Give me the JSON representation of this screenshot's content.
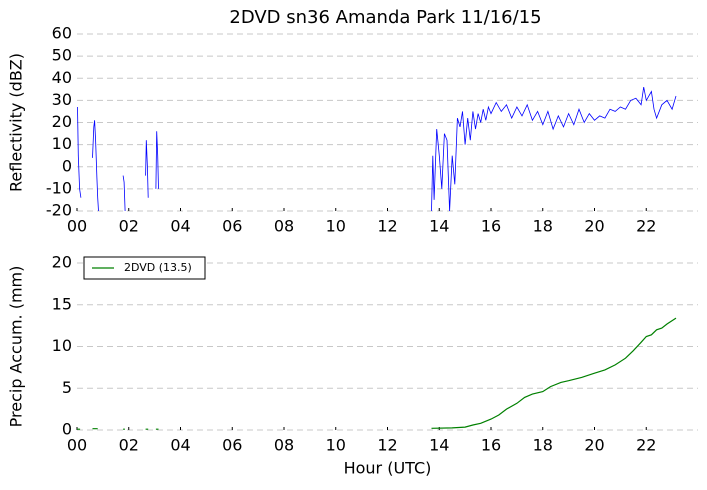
{
  "chart_data": [
    {
      "type": "line",
      "title": "2DVD sn36 Amanda Park 11/16/15",
      "y_label": "Reflectivity (dBZ)",
      "color": "#0000ff",
      "grid": true,
      "xlim": [
        0,
        24
      ],
      "xticks": [
        {
          "value": 0,
          "label": "00"
        },
        {
          "value": 2,
          "label": "02"
        },
        {
          "value": 4,
          "label": "04"
        },
        {
          "value": 6,
          "label": "06"
        },
        {
          "value": 8,
          "label": "08"
        },
        {
          "value": 10,
          "label": "10"
        },
        {
          "value": 12,
          "label": "12"
        },
        {
          "value": 14,
          "label": "14"
        },
        {
          "value": 16,
          "label": "16"
        },
        {
          "value": 18,
          "label": "18"
        },
        {
          "value": 20,
          "label": "20"
        },
        {
          "value": 22,
          "label": "22"
        }
      ],
      "ylim": [
        -20,
        60
      ],
      "yticks": [
        -20,
        -10,
        0,
        10,
        20,
        30,
        40,
        50,
        60
      ],
      "x": [
        0.02,
        0.05,
        0.1,
        0.15,
        0.3,
        0.6,
        0.65,
        0.68,
        0.72,
        0.77,
        0.8,
        0.83,
        1.2,
        1.78,
        1.82,
        1.86,
        2.2,
        2.65,
        2.68,
        2.72,
        2.75,
        2.9,
        3.05,
        3.08,
        3.12,
        3.15,
        8.0,
        13.7,
        13.75,
        13.8,
        13.9,
        14.0,
        14.1,
        14.2,
        14.3,
        14.4,
        14.5,
        14.6,
        14.7,
        14.8,
        14.9,
        15.0,
        15.1,
        15.2,
        15.3,
        15.4,
        15.5,
        15.6,
        15.7,
        15.8,
        15.9,
        16.0,
        16.2,
        16.4,
        16.6,
        16.8,
        17.0,
        17.2,
        17.4,
        17.6,
        17.8,
        18.0,
        18.2,
        18.4,
        18.6,
        18.8,
        19.0,
        19.2,
        19.4,
        19.6,
        19.8,
        20.0,
        20.2,
        20.4,
        20.6,
        20.8,
        21.0,
        21.2,
        21.4,
        21.6,
        21.8,
        21.9,
        22.0,
        22.2,
        22.3,
        22.4,
        22.6,
        22.8,
        23.0,
        23.15
      ],
      "values": [
        27,
        5,
        -10,
        -14,
        null,
        4,
        18,
        21,
        12,
        -5,
        -14,
        -20,
        null,
        -4,
        -7,
        -20,
        null,
        -4,
        12,
        0,
        -14,
        null,
        -10,
        16,
        5,
        -10,
        null,
        -20,
        5,
        -15,
        17,
        5,
        -10,
        15,
        12,
        -20,
        5,
        -8,
        22,
        18,
        25,
        10,
        22,
        12,
        25,
        17,
        24,
        20,
        26,
        21,
        27,
        24,
        29,
        25,
        28,
        22,
        27,
        23,
        28,
        21,
        25,
        19,
        25,
        17,
        23,
        18,
        24,
        19,
        26,
        20,
        24,
        21,
        23,
        22,
        26,
        25,
        27,
        26,
        30,
        31,
        28,
        36,
        30,
        34,
        26,
        22,
        28,
        30,
        26,
        32
      ]
    },
    {
      "type": "line",
      "x_label": "Hour (UTC)",
      "y_label": "Precip Accum. (mm)",
      "grid": true,
      "legend": "upper left",
      "xlim": [
        0,
        24
      ],
      "xticks": [
        {
          "value": 0,
          "label": "00"
        },
        {
          "value": 2,
          "label": "02"
        },
        {
          "value": 4,
          "label": "04"
        },
        {
          "value": 6,
          "label": "06"
        },
        {
          "value": 8,
          "label": "08"
        },
        {
          "value": 10,
          "label": "10"
        },
        {
          "value": 12,
          "label": "12"
        },
        {
          "value": 14,
          "label": "14"
        },
        {
          "value": 16,
          "label": "16"
        },
        {
          "value": 18,
          "label": "18"
        },
        {
          "value": 20,
          "label": "20"
        },
        {
          "value": 22,
          "label": "22"
        }
      ],
      "ylim": [
        0,
        20
      ],
      "yticks": [
        0,
        5,
        10,
        15,
        20
      ],
      "x": [
        0.0,
        0.12,
        0.3,
        0.6,
        0.8,
        1.2,
        1.78,
        1.85,
        2.2,
        2.65,
        2.75,
        2.9,
        3.05,
        3.15,
        8.0,
        13.7,
        14.5,
        15.0,
        15.3,
        15.6,
        16.0,
        16.3,
        16.6,
        17.0,
        17.3,
        17.6,
        18.0,
        18.3,
        18.7,
        19.0,
        19.5,
        20.0,
        20.4,
        20.8,
        21.2,
        21.5,
        21.8,
        22.0,
        22.2,
        22.4,
        22.6,
        22.8,
        23.15
      ],
      "series": [
        {
          "name": "2DVD (13.5)",
          "color": "#008000",
          "values": [
            0.1,
            0.1,
            null,
            0.15,
            0.15,
            null,
            0.1,
            0.1,
            null,
            0.1,
            0.1,
            null,
            0.1,
            0.1,
            null,
            0.2,
            0.25,
            0.35,
            0.6,
            0.8,
            1.3,
            1.8,
            2.5,
            3.2,
            3.9,
            4.3,
            4.6,
            5.2,
            5.7,
            5.9,
            6.3,
            6.8,
            7.2,
            7.8,
            8.6,
            9.5,
            10.5,
            11.2,
            11.4,
            12.0,
            12.2,
            12.7,
            13.4
          ]
        }
      ]
    }
  ]
}
